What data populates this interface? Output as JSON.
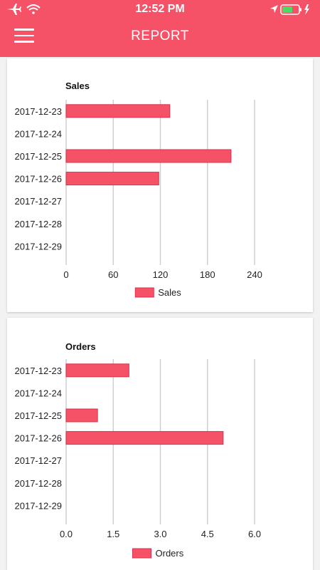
{
  "status_bar": {
    "time": "12:52 PM",
    "icons": [
      "airplane-icon",
      "wifi-icon",
      "location-icon",
      "battery-icon",
      "charging-icon"
    ]
  },
  "nav": {
    "title": "REPORT",
    "menu_icon": "hamburger-menu-icon"
  },
  "colors": {
    "accent": "#f55268",
    "bar": "#f55268",
    "grid": "#d0d0d0"
  },
  "chart_data": [
    {
      "type": "bar",
      "orientation": "horizontal",
      "title": "Sales",
      "categories": [
        "2017-12-23",
        "2017-12-24",
        "2017-12-25",
        "2017-12-26",
        "2017-12-27",
        "2017-12-28",
        "2017-12-29"
      ],
      "series": [
        {
          "name": "Sales",
          "values": [
            132,
            0,
            210,
            118,
            0,
            0,
            0
          ]
        }
      ],
      "xticks": [
        "0",
        "60",
        "120",
        "180",
        "240"
      ],
      "xlim": [
        0,
        240
      ],
      "grid": true,
      "legend": "bottom-center"
    },
    {
      "type": "bar",
      "orientation": "horizontal",
      "title": "Orders",
      "categories": [
        "2017-12-23",
        "2017-12-24",
        "2017-12-25",
        "2017-12-26",
        "2017-12-27",
        "2017-12-28",
        "2017-12-29"
      ],
      "series": [
        {
          "name": "Orders",
          "values": [
            2,
            0,
            1,
            5,
            0,
            0,
            0
          ]
        }
      ],
      "xticks": [
        "0.0",
        "1.5",
        "3.0",
        "4.5",
        "6.0"
      ],
      "xlim": [
        0,
        6
      ],
      "grid": true,
      "legend": "bottom-center"
    }
  ]
}
